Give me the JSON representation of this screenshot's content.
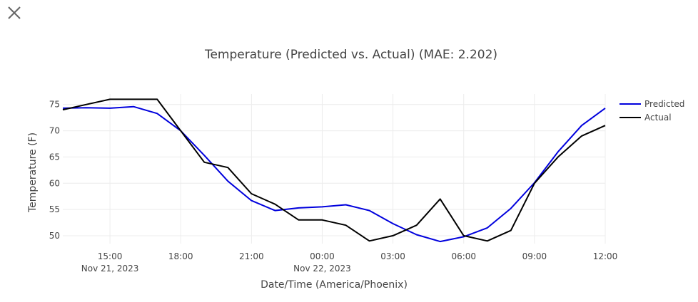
{
  "ui": {
    "close_icon": "close-icon"
  },
  "chart_data": {
    "type": "line",
    "title": "Temperature (Predicted vs. Actual) (MAE: 2.202)",
    "xlabel": "Date/Time (America/Phoenix)",
    "ylabel": "Temperature (F)",
    "x": [
      "2023-11-21 13:00",
      "2023-11-21 14:00",
      "2023-11-21 15:00",
      "2023-11-21 16:00",
      "2023-11-21 17:00",
      "2023-11-21 18:00",
      "2023-11-21 19:00",
      "2023-11-21 20:00",
      "2023-11-21 21:00",
      "2023-11-21 22:00",
      "2023-11-21 23:00",
      "2023-11-22 00:00",
      "2023-11-22 01:00",
      "2023-11-22 02:00",
      "2023-11-22 03:00",
      "2023-11-22 04:00",
      "2023-11-22 05:00",
      "2023-11-22 06:00",
      "2023-11-22 07:00",
      "2023-11-22 08:00",
      "2023-11-22 09:00",
      "2023-11-22 10:00",
      "2023-11-22 11:00",
      "2023-11-22 12:00"
    ],
    "xlim": [
      "2023-11-21 13:00",
      "2023-11-22 12:00"
    ],
    "ylim": [
      48.5,
      77
    ],
    "yticks": [
      50,
      55,
      60,
      65,
      70,
      75
    ],
    "xticks": [
      {
        "x": "2023-11-21 15:00",
        "label": "15:00",
        "sublabel": "Nov 21, 2023"
      },
      {
        "x": "2023-11-21 18:00",
        "label": "18:00",
        "sublabel": ""
      },
      {
        "x": "2023-11-21 21:00",
        "label": "21:00",
        "sublabel": ""
      },
      {
        "x": "2023-11-22 00:00",
        "label": "00:00",
        "sublabel": "Nov 22, 2023"
      },
      {
        "x": "2023-11-22 03:00",
        "label": "03:00",
        "sublabel": ""
      },
      {
        "x": "2023-11-22 06:00",
        "label": "06:00",
        "sublabel": ""
      },
      {
        "x": "2023-11-22 09:00",
        "label": "09:00",
        "sublabel": ""
      },
      {
        "x": "2023-11-22 12:00",
        "label": "12:00",
        "sublabel": ""
      }
    ],
    "series": [
      {
        "name": "Predicted",
        "color": "#0000dd",
        "values": [
          74.3,
          74.4,
          74.3,
          74.6,
          73.3,
          70.0,
          65.3,
          60.4,
          56.7,
          54.8,
          55.3,
          55.5,
          55.9,
          54.8,
          52.3,
          50.2,
          48.9,
          49.8,
          51.5,
          55.2,
          60.1,
          66.0,
          71.0,
          74.3
        ]
      },
      {
        "name": "Actual",
        "color": "#000000",
        "values": [
          74,
          75,
          76,
          76,
          76,
          70,
          64,
          63,
          58,
          56,
          53,
          53,
          52,
          49,
          50,
          52,
          57,
          50,
          49,
          51,
          60,
          65,
          69,
          71
        ]
      }
    ],
    "grid": true,
    "legend_position": "top-right"
  }
}
